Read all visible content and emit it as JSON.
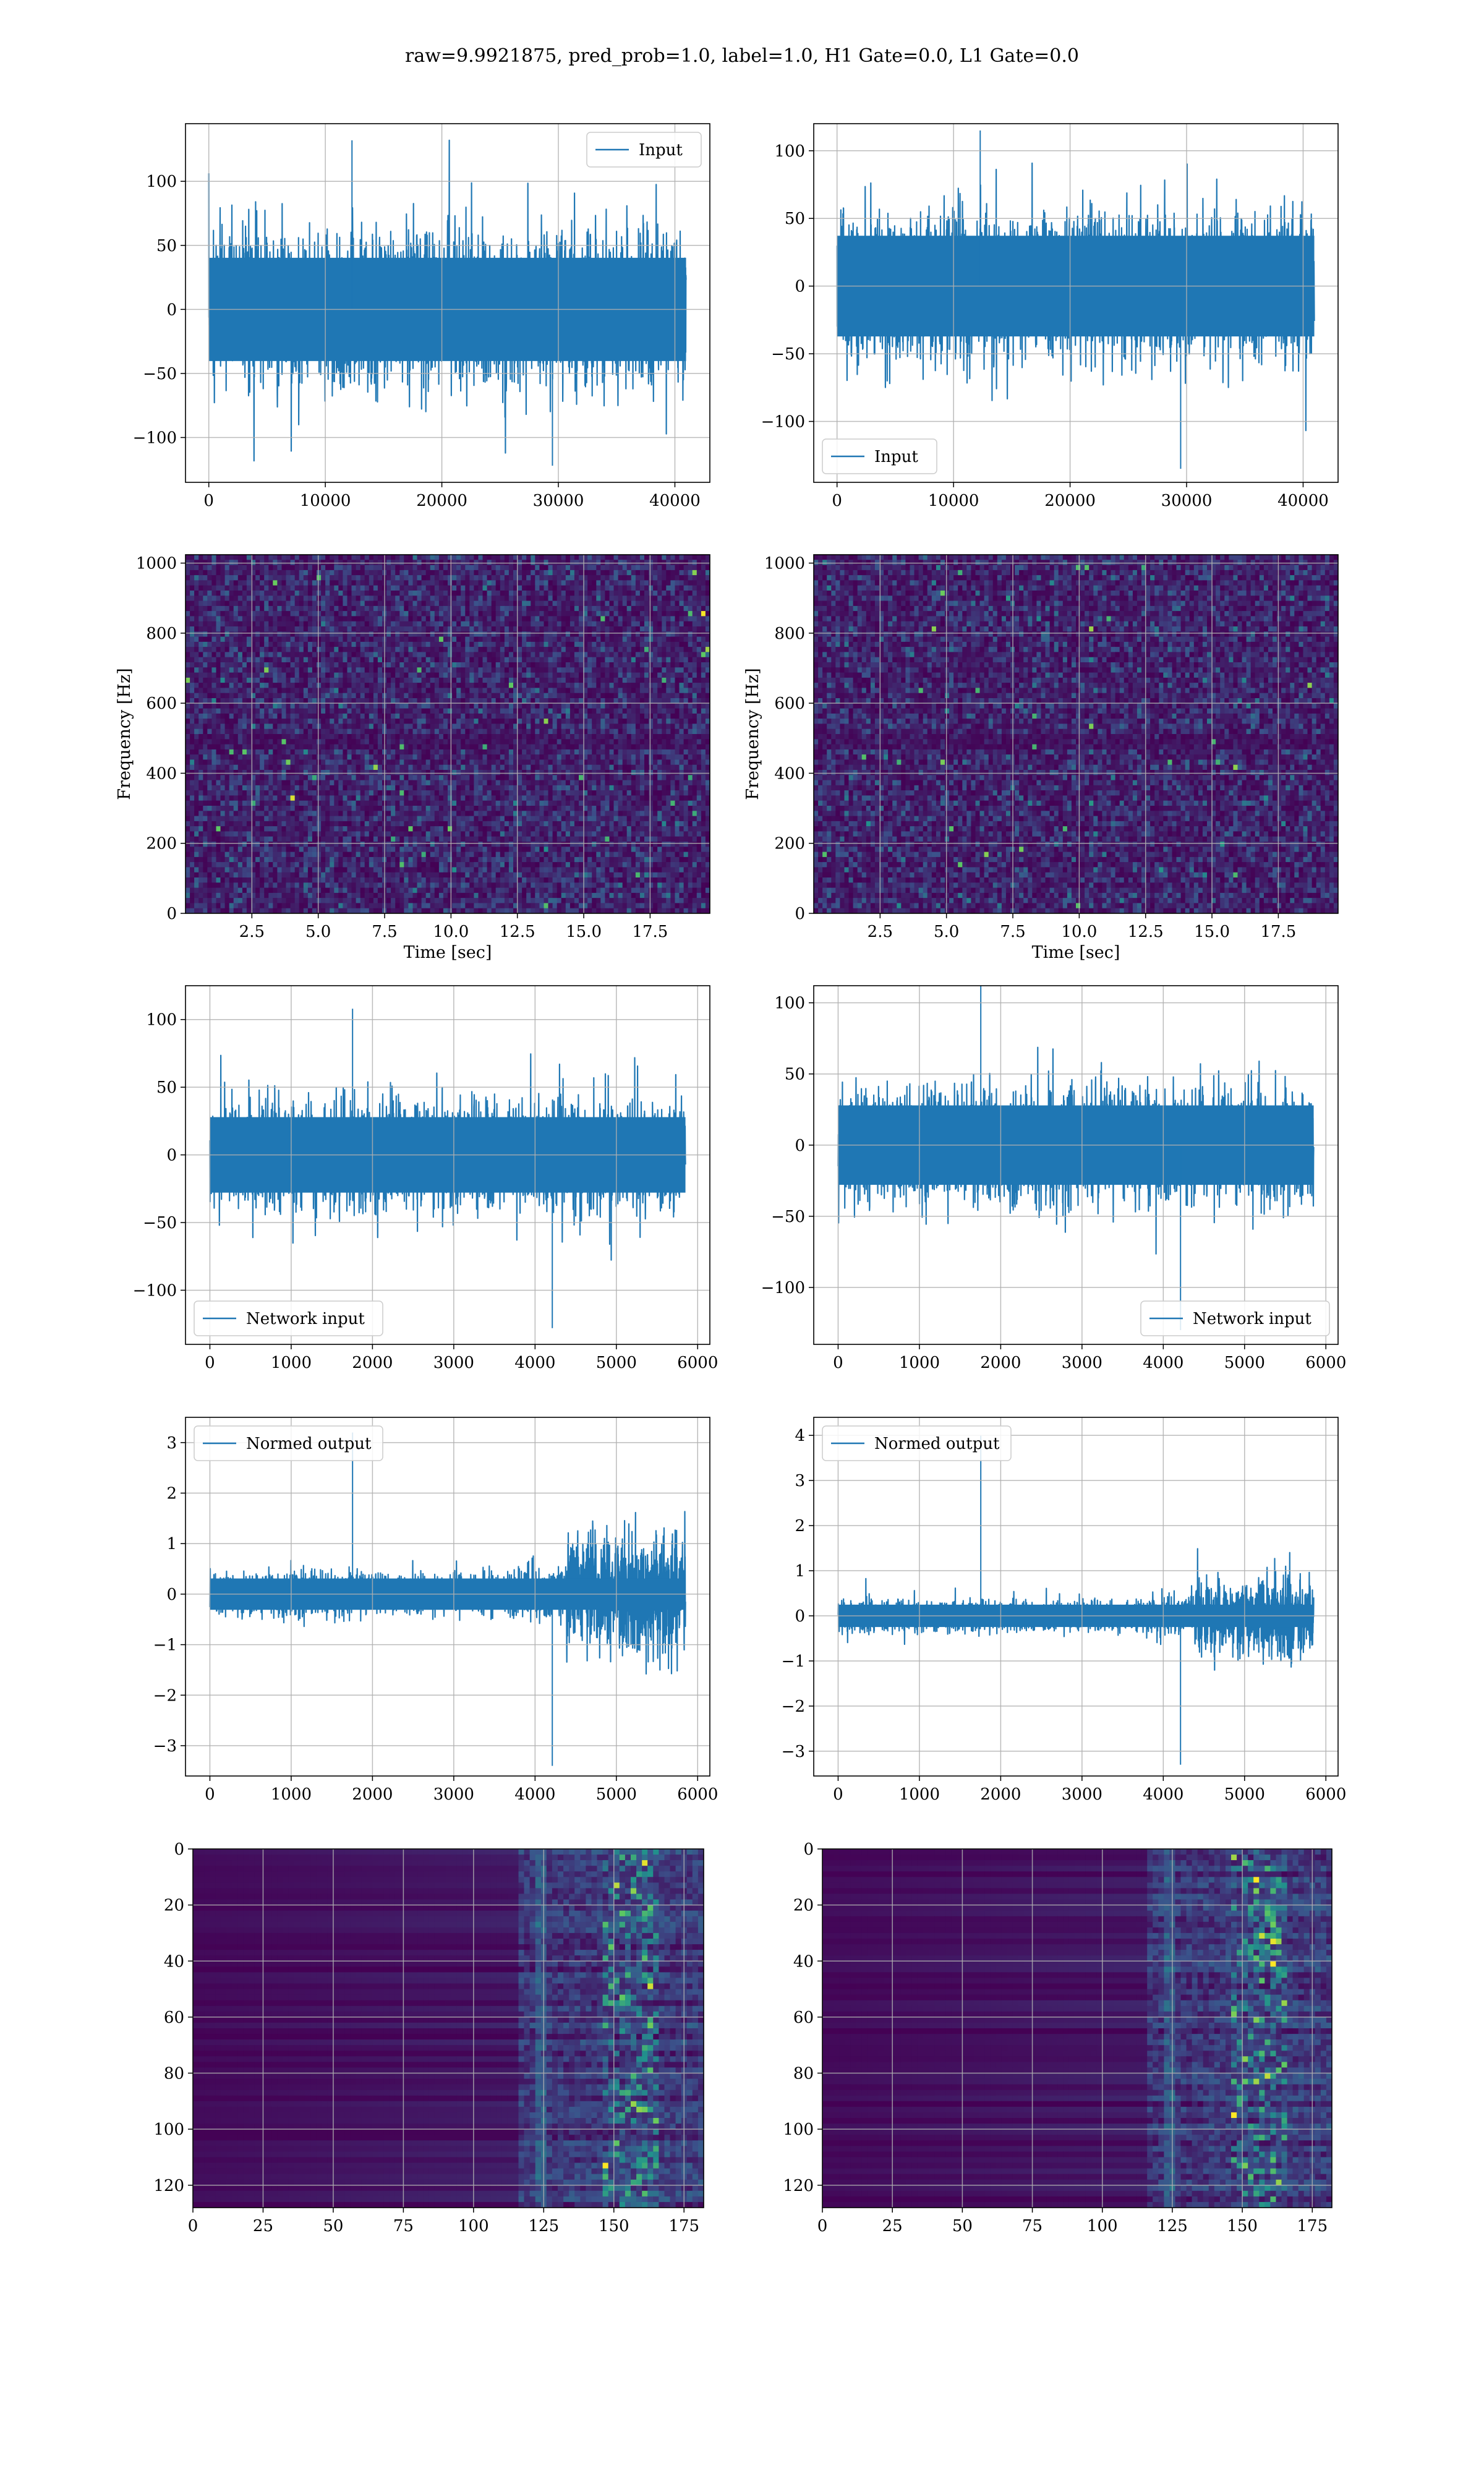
{
  "figure": {
    "suptitle": "raw=9.9921875, pred_prob=1.0, label=1.0, H1 Gate=0.0, L1 Gate=0.0"
  },
  "colors": {
    "line": "#1f77b4",
    "grid": "#b0b0b0",
    "viridis": [
      "#440154",
      "#3b528b",
      "#21918c",
      "#5ec962",
      "#fde725"
    ]
  },
  "chart_data": [
    {
      "id": "input-h1",
      "type": "line",
      "row": 0,
      "col": 0,
      "legend": "Input",
      "legend_loc": "upper right",
      "xlim": [
        -2000,
        43000
      ],
      "ylim": [
        -135,
        145
      ],
      "xticks": [
        0,
        10000,
        20000,
        30000,
        40000
      ],
      "yticks": [
        -100,
        -50,
        0,
        50,
        100
      ],
      "series": [
        {
          "x_start": 0,
          "x_end": 40960,
          "body": 65,
          "peak_max": 132,
          "peak_min": -122,
          "profile": [
            1,
            1,
            1,
            1,
            1,
            1,
            1,
            1
          ]
        }
      ]
    },
    {
      "id": "input-l1",
      "type": "line",
      "row": 0,
      "col": 1,
      "legend": "Input",
      "legend_loc": "lower left",
      "xlim": [
        -2000,
        43000
      ],
      "ylim": [
        -145,
        120
      ],
      "xticks": [
        0,
        10000,
        20000,
        30000,
        40000
      ],
      "yticks": [
        -100,
        -50,
        0,
        50,
        100
      ],
      "series": [
        {
          "x_start": 0,
          "x_end": 40960,
          "body": 60,
          "peak_max": 115,
          "peak_min": -135,
          "profile": [
            1,
            1,
            1,
            1,
            1,
            1,
            1,
            1
          ]
        }
      ]
    },
    {
      "id": "spectrogram-h1",
      "type": "heatmap",
      "row": 1,
      "col": 0,
      "xlabel": "Time [sec]",
      "ylabel": "Frequency [Hz]",
      "xlim": [
        0,
        19.75
      ],
      "ylim": [
        0,
        1024
      ],
      "xticks": [
        2.5,
        5.0,
        7.5,
        10.0,
        12.5,
        15.0,
        17.5
      ],
      "ytick_labels": [
        "0",
        "200",
        "400",
        "600",
        "800",
        "1000"
      ],
      "yticks": [
        0,
        200,
        400,
        600,
        800,
        1000
      ],
      "colormap": "viridis"
    },
    {
      "id": "spectrogram-l1",
      "type": "heatmap",
      "row": 1,
      "col": 1,
      "xlabel": "Time [sec]",
      "ylabel": "Frequency [Hz]",
      "xlim": [
        0,
        19.75
      ],
      "ylim": [
        0,
        1024
      ],
      "xticks": [
        2.5,
        5.0,
        7.5,
        10.0,
        12.5,
        15.0,
        17.5
      ],
      "yticks": [
        0,
        200,
        400,
        600,
        800,
        1000
      ],
      "colormap": "viridis"
    },
    {
      "id": "network-input-h1",
      "type": "line",
      "row": 2,
      "col": 0,
      "legend": "Network input",
      "legend_loc": "lower left",
      "xlim": [
        -300,
        6150
      ],
      "ylim": [
        -140,
        125
      ],
      "xticks": [
        0,
        1000,
        2000,
        3000,
        4000,
        5000,
        6000
      ],
      "yticks": [
        -100,
        -50,
        0,
        50,
        100
      ],
      "series": [
        {
          "x_start": 0,
          "x_end": 5850,
          "body": 45,
          "peak_max": 108,
          "peak_min": -128,
          "profile": [
            1,
            1,
            1,
            1,
            1,
            1,
            1,
            1
          ]
        }
      ]
    },
    {
      "id": "network-input-l1",
      "type": "line",
      "row": 2,
      "col": 1,
      "legend": "Network input",
      "legend_loc": "lower right",
      "xlim": [
        -300,
        6150
      ],
      "ylim": [
        -140,
        112
      ],
      "xticks": [
        0,
        1000,
        2000,
        3000,
        4000,
        5000,
        6000
      ],
      "yticks": [
        -100,
        -50,
        0,
        50,
        100
      ],
      "series": [
        {
          "x_start": 0,
          "x_end": 5850,
          "body": 45,
          "peak_max": 112,
          "peak_min": -130,
          "profile": [
            1,
            1,
            1,
            1,
            1,
            1,
            1,
            1
          ]
        }
      ]
    },
    {
      "id": "normed-output-h1",
      "type": "line",
      "row": 3,
      "col": 0,
      "legend": "Normed output",
      "legend_loc": "upper left",
      "xlim": [
        -300,
        6150
      ],
      "ylim": [
        -3.6,
        3.5
      ],
      "xticks": [
        0,
        1000,
        2000,
        3000,
        4000,
        5000,
        6000
      ],
      "yticks": [
        -3,
        -2,
        -1,
        0,
        1,
        2,
        3
      ],
      "series": [
        {
          "x_start": 0,
          "x_end": 5850,
          "body": 0.5,
          "peak_max": 3.2,
          "peak_min": -3.4,
          "profile": [
            1,
            1,
            1,
            0.85,
            0.9,
            1.1,
            2.4,
            2.6
          ]
        }
      ]
    },
    {
      "id": "normed-output-l1",
      "type": "line",
      "row": 3,
      "col": 1,
      "legend": "Normed output",
      "legend_loc": "upper left",
      "xlim": [
        -300,
        6150
      ],
      "ylim": [
        -3.55,
        4.4
      ],
      "xticks": [
        0,
        1000,
        2000,
        3000,
        4000,
        5000,
        6000
      ],
      "yticks": [
        -3,
        -2,
        -1,
        0,
        1,
        2,
        3,
        4
      ],
      "series": [
        {
          "x_start": 0,
          "x_end": 5850,
          "body": 0.4,
          "peak_max": 4.0,
          "peak_min": -3.3,
          "profile": [
            1,
            1,
            0.9,
            0.9,
            0.9,
            1.1,
            2.3,
            2.5
          ]
        }
      ]
    },
    {
      "id": "features-h1",
      "type": "heatmap",
      "row": 4,
      "col": 0,
      "xlim": [
        0,
        182
      ],
      "ylim": [
        128,
        0
      ],
      "xticks": [
        0,
        25,
        50,
        75,
        100,
        125,
        150,
        175
      ],
      "yticks": [
        0,
        20,
        40,
        60,
        80,
        100,
        120
      ],
      "colormap": "viridis"
    },
    {
      "id": "features-l1",
      "type": "heatmap",
      "row": 4,
      "col": 1,
      "xlim": [
        0,
        182
      ],
      "ylim": [
        128,
        0
      ],
      "xticks": [
        0,
        25,
        50,
        75,
        100,
        125,
        150,
        175
      ],
      "yticks": [
        0,
        20,
        40,
        60,
        80,
        100,
        120
      ],
      "colormap": "viridis"
    }
  ]
}
